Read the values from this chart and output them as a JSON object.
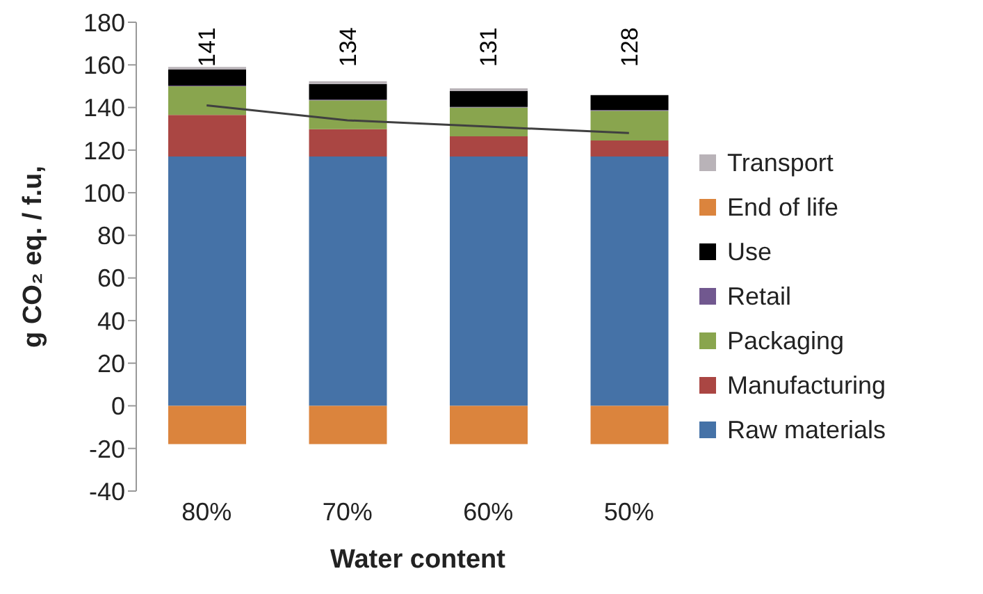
{
  "chart_data": {
    "type": "bar",
    "stacked": true,
    "xlabel": "Water content",
    "ylabel": "g CO₂ eq. / f.u,",
    "categories": [
      "80%",
      "70%",
      "60%",
      "50%"
    ],
    "series": [
      {
        "name": "Raw materials",
        "color": "#4572a7",
        "values": [
          117,
          117,
          117,
          117
        ]
      },
      {
        "name": "Manufacturing",
        "color": "#aa4643",
        "values": [
          19.5,
          12.8,
          9.5,
          7.5
        ]
      },
      {
        "name": "Packaging",
        "color": "#89a54e",
        "values": [
          13.5,
          13.6,
          13.5,
          14
        ]
      },
      {
        "name": "Retail",
        "color": "#71588f",
        "values": [
          0.3,
          0.3,
          0.3,
          0.3
        ]
      },
      {
        "name": "Use",
        "color": "#000000",
        "values": [
          7.5,
          7.3,
          7.4,
          7
        ]
      },
      {
        "name": "End of life",
        "color": "#db843d",
        "values": [
          -18,
          -18,
          -18,
          -18
        ]
      },
      {
        "name": "Transport",
        "color": "#b9b3b8",
        "values": [
          1.2,
          1.3,
          1.3,
          null
        ]
      },
      {
        "type": "line",
        "color": "#404040",
        "values": [
          141,
          134,
          131,
          128
        ],
        "value_labels": [
          "141",
          "134",
          "131",
          "128"
        ]
      }
    ],
    "ylim": [
      -40,
      180
    ],
    "yticks": [
      -40,
      -20,
      0,
      20,
      40,
      60,
      80,
      100,
      120,
      140,
      160,
      180
    ],
    "legend": "right",
    "marker": "none"
  }
}
